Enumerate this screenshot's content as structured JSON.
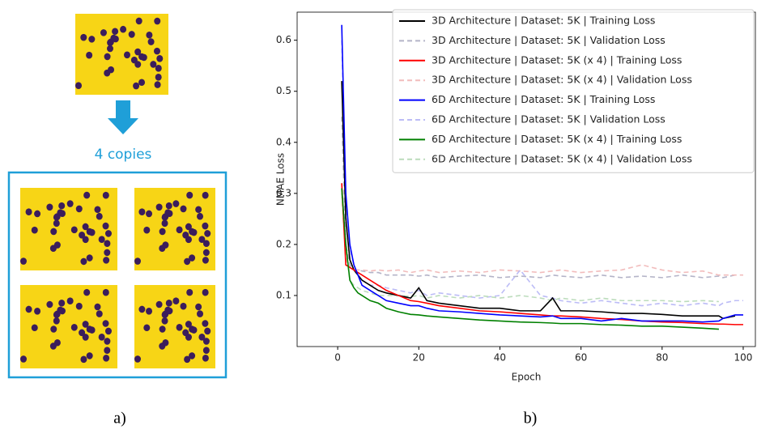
{
  "panel_a": {
    "label": "4 copies",
    "caption": "a)"
  },
  "panel_b": {
    "caption": "b)"
  },
  "chart_data": {
    "type": "line",
    "xlabel": "Epoch",
    "ylabel": "NMAE Loss",
    "x": [
      1,
      2,
      3,
      4,
      5,
      6,
      8,
      10,
      12,
      15,
      18,
      20,
      22,
      25,
      30,
      35,
      40,
      45,
      50,
      53,
      55,
      60,
      65,
      70,
      75,
      80,
      85,
      90,
      94,
      95,
      98,
      100
    ],
    "xlim": [
      -10,
      103
    ],
    "ylim": [
      0.0,
      0.655
    ],
    "xticks": [
      0,
      20,
      40,
      60,
      80,
      100
    ],
    "yticks": [
      0.1,
      0.2,
      0.3,
      0.4,
      0.5,
      0.6
    ],
    "legend": "upper right",
    "series": [
      {
        "name": "3D Architecture | Dataset: 5K | Training Loss",
        "color": "#000000",
        "linestyle": "solid",
        "values": [
          0.52,
          0.25,
          0.17,
          0.15,
          0.14,
          0.13,
          0.12,
          0.11,
          0.105,
          0.1,
          0.095,
          0.115,
          0.09,
          0.085,
          0.08,
          0.075,
          0.075,
          0.07,
          0.07,
          0.095,
          0.07,
          0.07,
          0.068,
          0.065,
          0.065,
          0.063,
          0.06,
          0.06,
          0.06,
          0.055,
          0.06,
          null
        ]
      },
      {
        "name": "3D Architecture | Dataset: 5K | Validation Loss",
        "color": "#b4b4c8",
        "linestyle": "dashed",
        "values": [
          0.45,
          0.2,
          0.16,
          0.15,
          0.15,
          0.148,
          0.145,
          0.145,
          0.14,
          0.14,
          0.14,
          0.138,
          0.14,
          0.135,
          0.138,
          0.14,
          0.135,
          0.138,
          0.135,
          0.14,
          0.138,
          0.135,
          0.14,
          0.135,
          0.138,
          0.135,
          0.14,
          0.135,
          0.138,
          0.135,
          0.14,
          null
        ]
      },
      {
        "name": "3D Architecture | Dataset: 5K (x 4) | Training Loss",
        "color": "#ff0000",
        "linestyle": "solid",
        "values": [
          0.32,
          0.16,
          0.155,
          0.15,
          0.145,
          0.14,
          0.13,
          0.12,
          0.11,
          0.1,
          0.09,
          0.088,
          0.085,
          0.08,
          0.075,
          0.07,
          0.068,
          0.065,
          0.062,
          0.06,
          0.06,
          0.058,
          0.055,
          0.053,
          0.05,
          0.048,
          0.047,
          0.045,
          0.044,
          0.044,
          0.043,
          0.043
        ]
      },
      {
        "name": "3D Architecture | Dataset: 5K (x 4) | Validation Loss",
        "color": "#f2bcbc",
        "linestyle": "dashed",
        "values": [
          0.3,
          0.17,
          0.155,
          0.15,
          0.15,
          0.15,
          0.148,
          0.15,
          0.148,
          0.15,
          0.145,
          0.148,
          0.15,
          0.145,
          0.148,
          0.145,
          0.15,
          0.148,
          0.145,
          0.148,
          0.15,
          0.145,
          0.148,
          0.15,
          0.16,
          0.15,
          0.145,
          0.148,
          0.14,
          0.14,
          0.14,
          0.14
        ]
      },
      {
        "name": "6D Architecture | Dataset: 5K | Training Loss",
        "color": "#0000ff",
        "linestyle": "solid",
        "values": [
          0.63,
          0.3,
          0.2,
          0.16,
          0.14,
          0.12,
          0.11,
          0.1,
          0.09,
          0.085,
          0.08,
          0.08,
          0.075,
          0.07,
          0.068,
          0.065,
          0.062,
          0.06,
          0.058,
          0.06,
          0.055,
          0.055,
          0.05,
          0.055,
          0.05,
          0.05,
          0.05,
          0.048,
          0.05,
          0.055,
          0.062,
          0.062
        ]
      },
      {
        "name": "6D Architecture | Dataset: 5K | Validation Loss",
        "color": "#bcbcf6",
        "linestyle": "dashed",
        "values": [
          0.6,
          0.28,
          0.19,
          0.16,
          0.14,
          0.13,
          0.12,
          0.12,
          0.115,
          0.11,
          0.105,
          0.11,
          0.1,
          0.105,
          0.1,
          0.095,
          0.1,
          0.15,
          0.1,
          0.095,
          0.09,
          0.085,
          0.09,
          0.085,
          0.08,
          0.085,
          0.08,
          0.085,
          0.08,
          0.085,
          0.09,
          0.09
        ]
      },
      {
        "name": "6D Architecture | Dataset: 5K (x 4) | Training Loss",
        "color": "#008000",
        "linestyle": "solid",
        "values": [
          0.31,
          0.2,
          0.13,
          0.115,
          0.105,
          0.1,
          0.09,
          0.085,
          0.075,
          0.068,
          0.063,
          0.062,
          0.06,
          0.058,
          0.055,
          0.052,
          0.05,
          0.048,
          0.047,
          0.046,
          0.045,
          0.045,
          0.043,
          0.042,
          0.04,
          0.04,
          0.038,
          0.036,
          0.034,
          null,
          null,
          null
        ]
      },
      {
        "name": "6D Architecture | Dataset: 5K (x 4) | Validation Loss",
        "color": "#bcdcbc",
        "linestyle": "dashed",
        "values": [
          0.3,
          0.19,
          0.13,
          0.12,
          0.115,
          0.11,
          0.105,
          0.1,
          0.1,
          0.1,
          0.098,
          0.1,
          0.095,
          0.1,
          0.095,
          0.1,
          0.095,
          0.1,
          0.095,
          0.09,
          0.095,
          0.09,
          0.095,
          0.09,
          0.09,
          0.09,
          0.088,
          0.09,
          0.088,
          null,
          null,
          null
        ]
      }
    ]
  }
}
